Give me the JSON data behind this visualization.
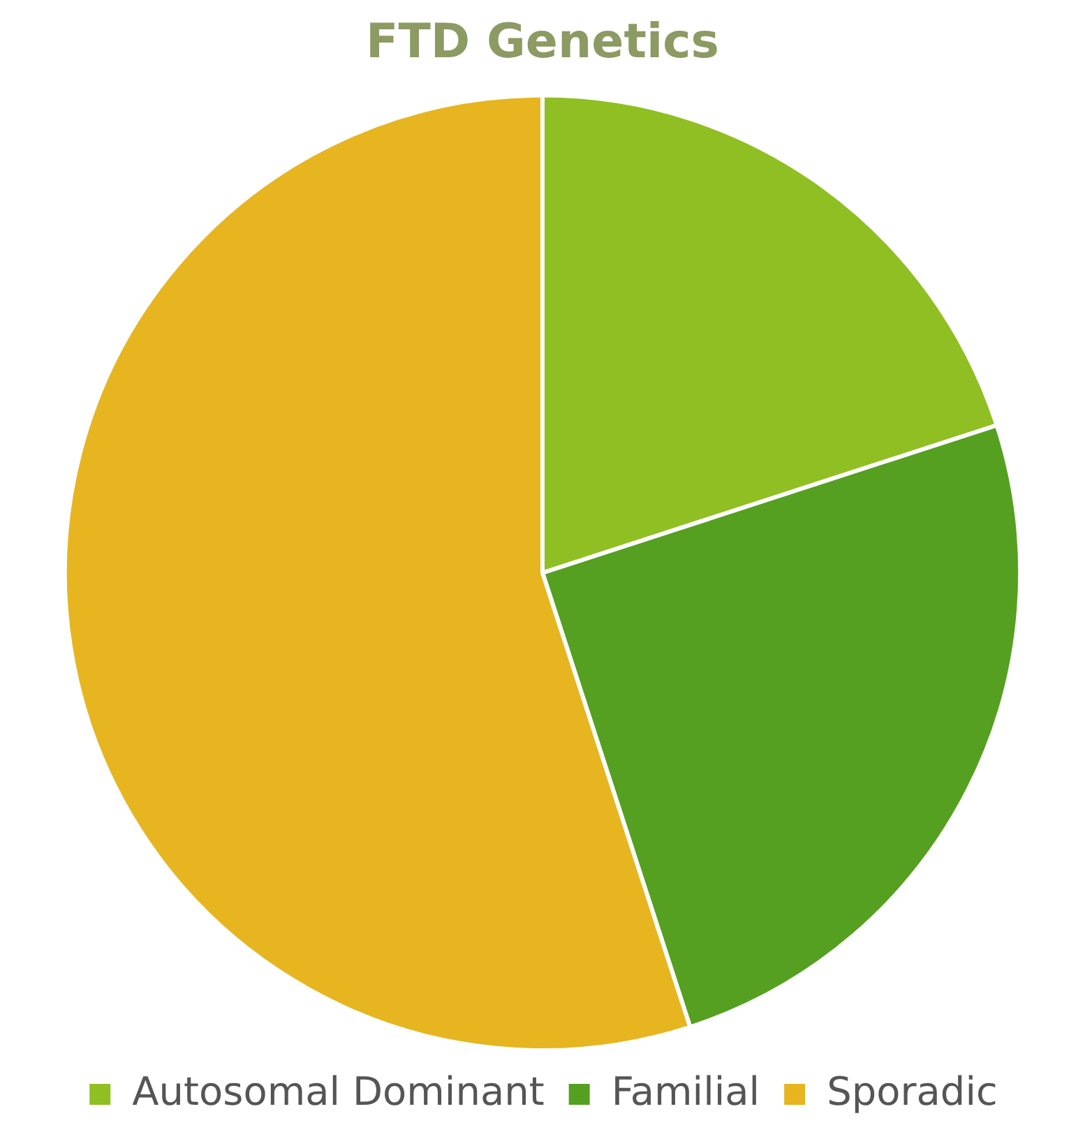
{
  "chart_data": {
    "type": "pie",
    "title": "FTD Genetics",
    "categories": [
      "Autosomal Dominant",
      "Familial",
      "Sporadic"
    ],
    "values": [
      20,
      25,
      55
    ],
    "colors": [
      "#8fbf22",
      "#55a020",
      "#e6b520"
    ],
    "legend": "bottom"
  }
}
